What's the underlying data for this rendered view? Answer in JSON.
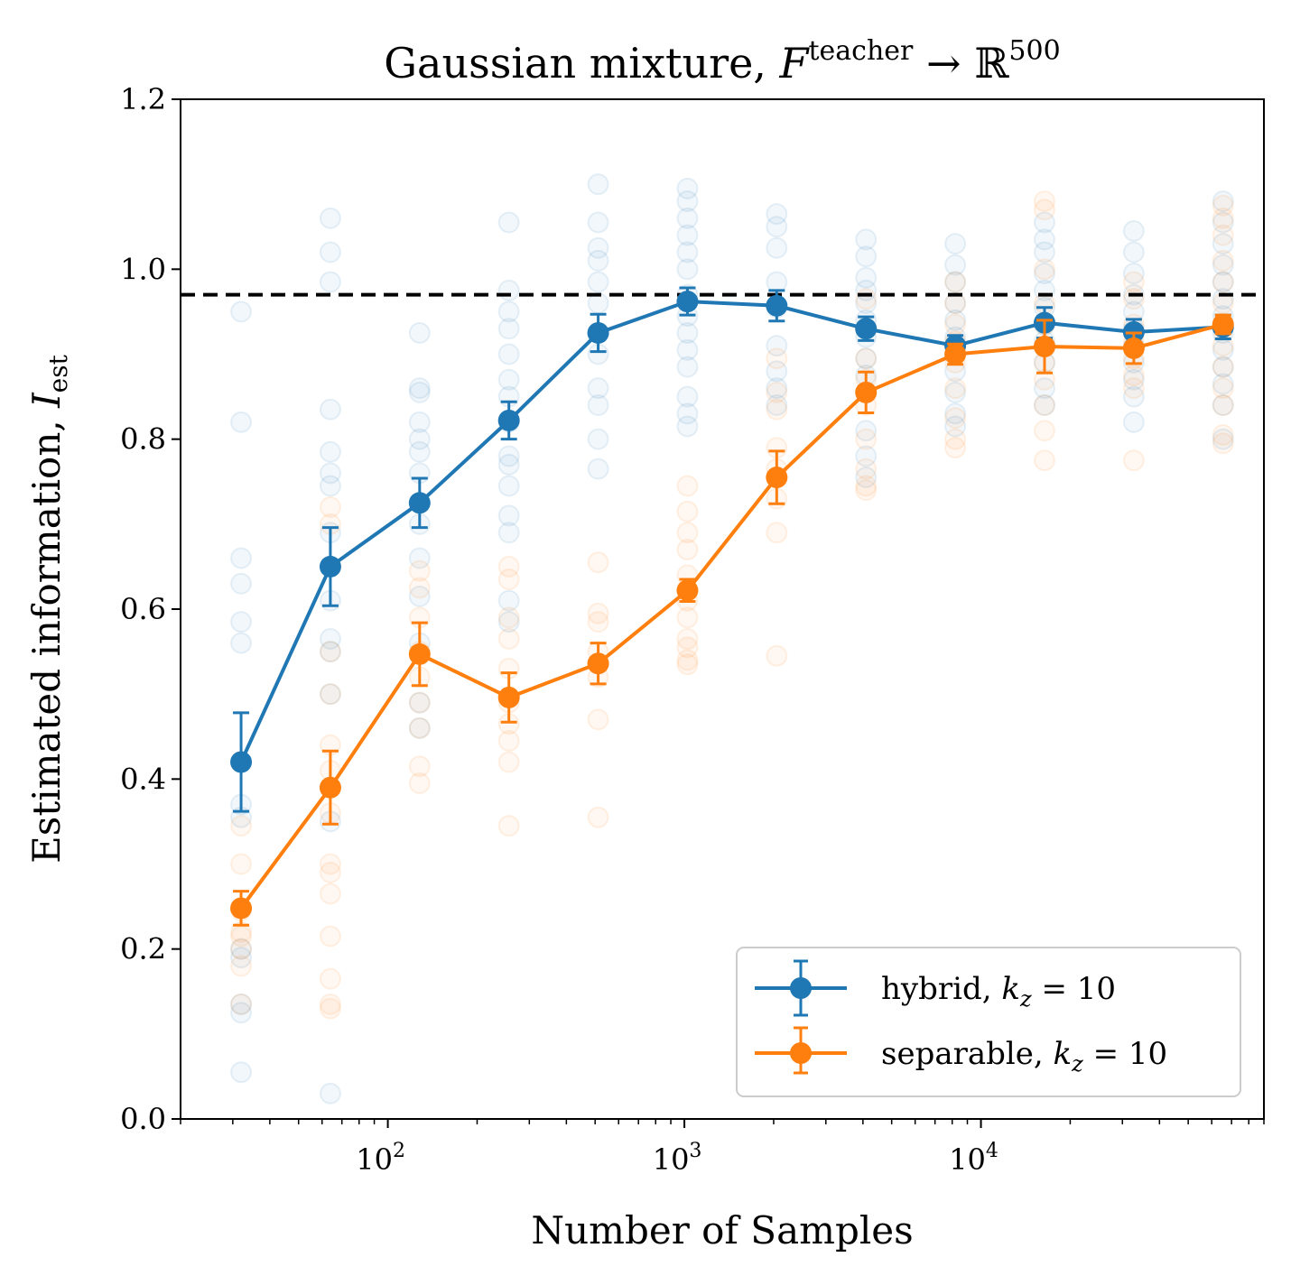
{
  "chart_data": {
    "type": "line",
    "title": {
      "main": "Gaussian mixture, ",
      "F": "F",
      "sup": "teacher",
      "arrow": " → ",
      "R": "ℝ",
      "dim": "500"
    },
    "xlabel": "Number of Samples",
    "ylabel": {
      "main": "Estimated information, ",
      "I": "I",
      "sub": "est"
    },
    "xscale": "log",
    "xlim": [
      20,
      90000
    ],
    "ylim": [
      0.0,
      1.2
    ],
    "yticks": [
      {
        "value": 0.0,
        "label": "0.0"
      },
      {
        "value": 0.2,
        "label": "0.2"
      },
      {
        "value": 0.4,
        "label": "0.4"
      },
      {
        "value": 0.6,
        "label": "0.6"
      },
      {
        "value": 0.8,
        "label": "0.8"
      },
      {
        "value": 1.0,
        "label": "1.0"
      },
      {
        "value": 1.2,
        "label": "1.2"
      }
    ],
    "xticks": [
      {
        "value": 100,
        "base": "10",
        "exp": "2"
      },
      {
        "value": 1000,
        "base": "10",
        "exp": "3"
      },
      {
        "value": 10000,
        "base": "10",
        "exp": "4"
      }
    ],
    "reference_line": {
      "y": 0.97,
      "style": "dashed",
      "color": "#000000"
    },
    "legend_position": "lower-right",
    "series": [
      {
        "name": "hybrid",
        "legend_label": {
          "name": "hybrid, ",
          "k": "k",
          "sub": "z",
          "eq": " = 10"
        },
        "color": "#1f77b4",
        "x": [
          32,
          64,
          128,
          256,
          512,
          1024,
          2048,
          4096,
          8192,
          16384,
          32768,
          65536
        ],
        "y": [
          0.42,
          0.65,
          0.725,
          0.822,
          0.925,
          0.962,
          0.957,
          0.93,
          0.91,
          0.937,
          0.926,
          0.932
        ],
        "err": [
          0.058,
          0.046,
          0.029,
          0.022,
          0.022,
          0.016,
          0.018,
          0.014,
          0.012,
          0.018,
          0.015,
          0.014
        ],
        "scatter": [
          [
            0.95,
            0.82,
            0.66,
            0.63,
            0.585,
            0.56,
            0.37,
            0.355,
            0.2,
            0.19,
            0.135,
            0.125,
            0.055
          ],
          [
            1.06,
            1.02,
            0.985,
            0.835,
            0.785,
            0.76,
            0.745,
            0.69,
            0.61,
            0.565,
            0.55,
            0.5,
            0.35,
            0.03
          ],
          [
            0.925,
            0.86,
            0.855,
            0.82,
            0.8,
            0.785,
            0.76,
            0.725,
            0.7,
            0.66,
            0.615,
            0.56,
            0.49,
            0.46
          ],
          [
            1.055,
            0.975,
            0.95,
            0.93,
            0.9,
            0.87,
            0.85,
            0.82,
            0.78,
            0.77,
            0.745,
            0.71,
            0.69,
            0.61,
            0.585
          ],
          [
            1.1,
            1.055,
            1.025,
            1.01,
            0.985,
            0.96,
            0.9,
            0.86,
            0.84,
            0.8,
            0.765
          ],
          [
            1.095,
            1.08,
            1.06,
            1.04,
            1.02,
            1.0,
            0.97,
            0.945,
            0.925,
            0.905,
            0.885,
            0.85,
            0.83,
            0.815
          ],
          [
            1.065,
            1.05,
            1.025,
            0.985,
            0.955,
            0.91,
            0.88,
            0.86,
            0.84
          ],
          [
            1.035,
            1.015,
            0.99,
            0.975,
            0.96,
            0.94,
            0.92,
            0.895,
            0.875,
            0.855,
            0.81,
            0.78,
            0.755
          ],
          [
            1.03,
            1.005,
            0.985,
            0.96,
            0.94,
            0.92,
            0.9,
            0.88,
            0.855,
            0.83,
            0.815
          ],
          [
            1.055,
            1.035,
            1.02,
            0.995,
            0.975,
            0.955,
            0.935,
            0.915,
            0.89,
            0.86,
            0.84
          ],
          [
            1.045,
            1.02,
            0.995,
            0.97,
            0.95,
            0.93,
            0.91,
            0.89,
            0.87,
            0.85,
            0.82
          ],
          [
            1.08,
            1.055,
            1.03,
            1.005,
            0.985,
            0.965,
            0.945,
            0.925,
            0.905,
            0.885,
            0.865,
            0.84,
            0.8
          ]
        ]
      },
      {
        "name": "separable",
        "legend_label": {
          "name": "separable, ",
          "k": "k",
          "sub": "z",
          "eq": " = 10"
        },
        "color": "#ff7f0e",
        "x": [
          32,
          64,
          128,
          256,
          512,
          1024,
          2048,
          4096,
          8192,
          16384,
          32768,
          65536
        ],
        "y": [
          0.248,
          0.39,
          0.547,
          0.496,
          0.536,
          0.622,
          0.755,
          0.855,
          0.9,
          0.909,
          0.907,
          0.935
        ],
        "err": [
          0.02,
          0.043,
          0.037,
          0.029,
          0.024,
          0.013,
          0.031,
          0.024,
          0.012,
          0.031,
          0.018,
          0.011
        ],
        "scatter": [
          [
            0.345,
            0.3,
            0.245,
            0.22,
            0.215,
            0.2,
            0.18,
            0.135
          ],
          [
            0.72,
            0.7,
            0.55,
            0.5,
            0.44,
            0.41,
            0.36,
            0.3,
            0.29,
            0.265,
            0.215,
            0.165,
            0.135,
            0.13
          ],
          [
            0.645,
            0.625,
            0.59,
            0.55,
            0.52,
            0.49,
            0.46,
            0.415,
            0.395
          ],
          [
            0.65,
            0.635,
            0.59,
            0.565,
            0.53,
            0.49,
            0.465,
            0.445,
            0.42,
            0.345
          ],
          [
            0.655,
            0.595,
            0.585,
            0.55,
            0.52,
            0.47,
            0.355
          ],
          [
            0.745,
            0.715,
            0.69,
            0.67,
            0.64,
            0.61,
            0.59,
            0.565,
            0.555,
            0.54,
            0.535
          ],
          [
            0.895,
            0.855,
            0.835,
            0.79,
            0.765,
            0.73,
            0.69,
            0.545
          ],
          [
            0.965,
            0.93,
            0.895,
            0.87,
            0.84,
            0.8,
            0.765,
            0.745,
            0.74
          ],
          [
            0.985,
            0.96,
            0.935,
            0.915,
            0.89,
            0.86,
            0.825,
            0.8,
            0.79
          ],
          [
            1.08,
            1.07,
            1.0,
            0.96,
            0.935,
            0.91,
            0.89,
            0.87,
            0.84,
            0.81,
            0.775
          ],
          [
            0.985,
            0.965,
            0.935,
            0.915,
            0.895,
            0.875,
            0.86,
            0.775
          ],
          [
            1.075,
            1.06,
            1.04,
            1.01,
            0.985,
            0.96,
            0.935,
            0.91,
            0.885,
            0.86,
            0.84,
            0.805,
            0.795
          ]
        ]
      }
    ]
  }
}
